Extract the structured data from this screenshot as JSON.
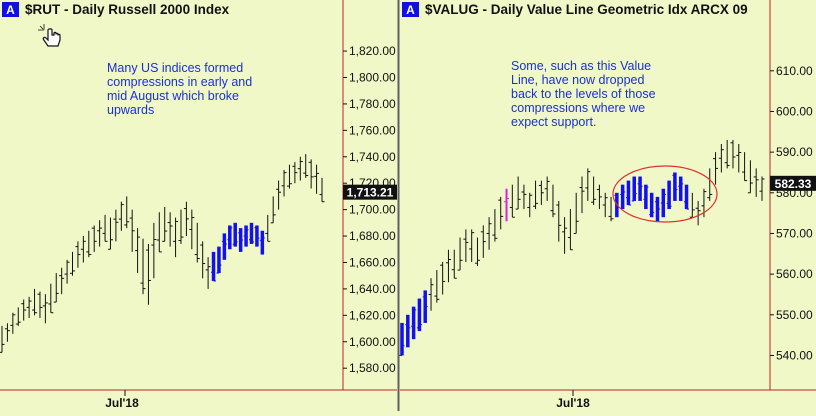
{
  "colors": {
    "background": "#f0f8c8",
    "bar": "#111111",
    "compression": "#1010f0",
    "highlight": "#e020e0",
    "annotation_text": "#1a2ee0",
    "axis_red": "#c82020",
    "badge_bg": "#1010e0",
    "price_box": "#111111",
    "ellipse": "#e03030"
  },
  "cursor_icon": "hand-pointer-icon",
  "panels": [
    {
      "badge": "A",
      "title": "$RUT - Daily  Russell 2000 Index",
      "annotation": [
        "Many US indices formed",
        "compressions in early and",
        "mid August which broke",
        "upwards"
      ],
      "last_price_label": "1,713.21",
      "x_tick_label": "Jul'18"
    },
    {
      "badge": "A",
      "title": "$VALUG - Daily  Value Line Geometric Idx  ARCX  09",
      "annotation": [
        "Some, such as this Value",
        "Line, have now dropped",
        "back to the levels of those",
        "compressions where we",
        "expect support."
      ],
      "last_price_label": "582.33",
      "x_tick_label": "Jul'18"
    }
  ],
  "chart_data": [
    {
      "type": "ohlc",
      "title": "$RUT - Daily  Russell 2000 Index",
      "ylim": [
        1565,
        1842
      ],
      "y_ticks": [
        1580,
        1600,
        1620,
        1640,
        1660,
        1680,
        1700,
        1720,
        1740,
        1760,
        1780,
        1800,
        1820
      ],
      "y_tick_labels": [
        "1,580.00",
        "1,600.00",
        "1,620.00",
        "1,640.00",
        "1,660.00",
        "1,680.00",
        "1,700.00",
        "1,720.00",
        "1,740.00",
        "1,760.00",
        "1,780.00",
        "1,800.00",
        "1,820.00"
      ],
      "x_labels": [
        "Jul'18"
      ],
      "last_price": 1713.21,
      "highs": [
        1612,
        1614,
        1622,
        1626,
        1632,
        1634,
        1640,
        1638,
        1636,
        1644,
        1652,
        1656,
        1662,
        1668,
        1676,
        1680,
        1684,
        1688,
        1692,
        1696,
        1694,
        1700,
        1706,
        1710,
        1700,
        1686,
        1678,
        1674,
        1690,
        1698,
        1702,
        1698,
        1694,
        1700,
        1706,
        1700,
        1690,
        1676,
        1664,
        1668,
        1672,
        1682,
        1688,
        1690,
        1686,
        1688,
        1690,
        1688,
        1684,
        1696,
        1710,
        1722,
        1730,
        1734,
        1736,
        1740,
        1742,
        1738,
        1734,
        1724
      ],
      "lows": [
        1592,
        1600,
        1606,
        1612,
        1616,
        1618,
        1620,
        1618,
        1614,
        1622,
        1630,
        1636,
        1644,
        1650,
        1656,
        1660,
        1664,
        1668,
        1672,
        1676,
        1670,
        1676,
        1684,
        1686,
        1668,
        1652,
        1636,
        1628,
        1648,
        1668,
        1676,
        1672,
        1664,
        1674,
        1680,
        1670,
        1660,
        1648,
        1640,
        1646,
        1652,
        1662,
        1670,
        1672,
        1668,
        1672,
        1674,
        1672,
        1666,
        1676,
        1690,
        1700,
        1710,
        1716,
        1720,
        1722,
        1724,
        1716,
        1712,
        1706
      ],
      "compressed_bars": [
        39,
        40,
        41,
        42,
        43,
        44,
        45,
        46,
        47,
        48
      ]
    },
    {
      "type": "ohlc",
      "title": "$VALUG - Daily  Value Line Geometric Idx  ARCX  09",
      "ylim": [
        532,
        622
      ],
      "y_ticks": [
        540,
        550,
        560,
        570,
        580,
        590,
        600,
        610
      ],
      "y_tick_labels": [
        "540.00",
        "550.00",
        "560.00",
        "570.00",
        "580.00",
        "590.00",
        "600.00",
        "610.00"
      ],
      "x_labels": [
        "Jul'18"
      ],
      "last_price": 582.33,
      "highs": [
        548,
        550,
        552,
        554,
        556,
        559,
        561,
        563,
        566,
        566,
        569,
        571,
        571,
        569,
        572,
        574,
        576,
        579,
        581,
        582,
        584,
        582,
        580,
        583,
        583,
        584,
        582,
        578,
        574,
        576,
        580,
        584,
        586,
        584,
        582,
        580,
        579,
        580,
        582,
        583,
        584,
        584,
        582,
        580,
        579,
        581,
        583,
        585,
        584,
        582,
        580,
        578,
        581,
        586,
        590,
        592,
        593,
        593,
        592,
        590,
        588,
        586,
        584
      ],
      "lows": [
        540,
        542,
        544,
        546,
        548,
        551,
        553,
        555,
        558,
        559,
        561,
        563,
        563,
        562,
        564,
        566,
        568,
        571,
        573,
        574,
        576,
        576,
        574,
        576,
        577,
        578,
        574,
        568,
        565,
        566,
        570,
        575,
        578,
        577,
        576,
        574,
        573,
        574,
        576,
        577,
        578,
        578,
        576,
        574,
        573,
        574,
        576,
        578,
        578,
        576,
        574,
        572,
        574,
        578,
        582,
        585,
        586,
        586,
        585,
        583,
        580,
        579,
        578
      ],
      "compressed_bars": [
        0,
        1,
        2,
        3,
        4,
        37,
        38,
        39,
        40,
        41,
        42,
        43,
        44,
        45,
        46,
        47,
        48,
        49
      ],
      "highlight_bars": [
        18
      ]
    }
  ]
}
